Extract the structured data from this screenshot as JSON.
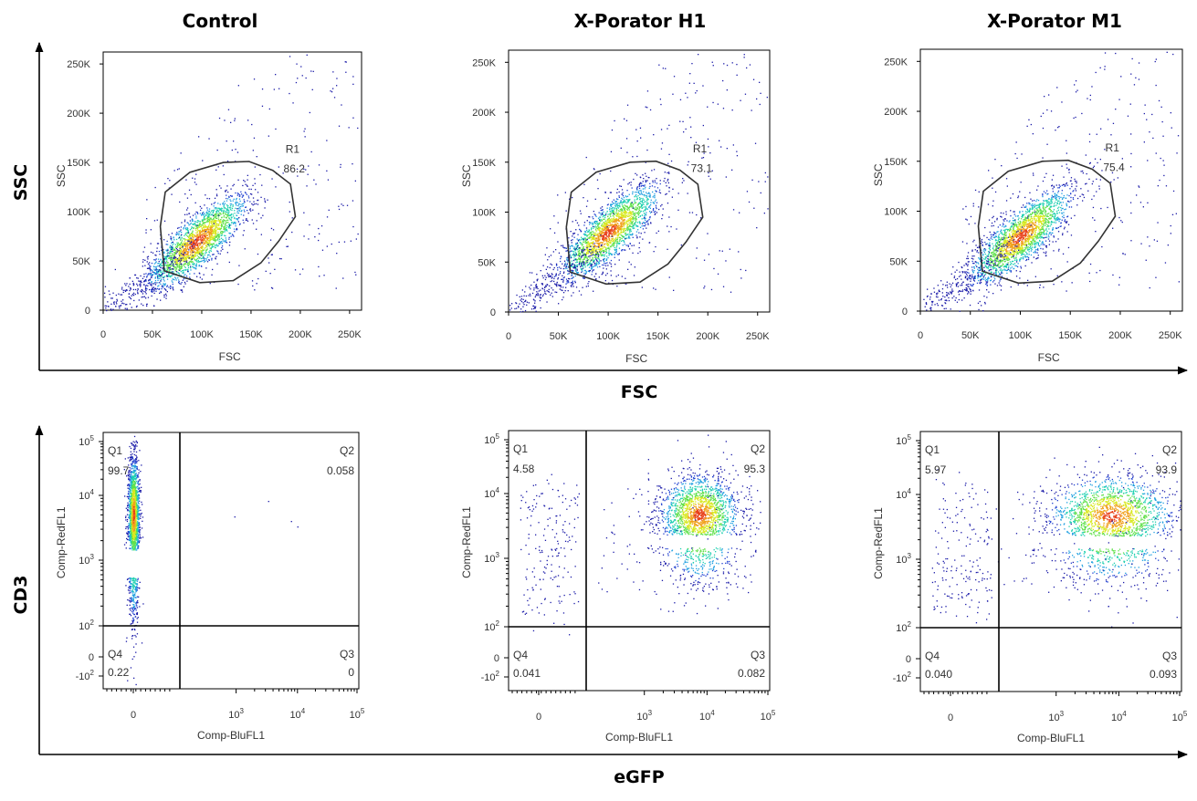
{
  "figure": {
    "column_titles": [
      "Control",
      "X-Porator H1",
      "X-Porator M1"
    ],
    "top_row": {
      "y_label": "SSC",
      "x_label": "FSC"
    },
    "bottom_row": {
      "y_label": "CD3",
      "x_label": "eGFP"
    }
  },
  "chart_data": [
    {
      "type": "scatter",
      "panel": "Control",
      "row": "scatter",
      "xlabel": "FSC",
      "ylabel": "SSC",
      "xlim": [
        0,
        262144
      ],
      "ylim": [
        0,
        262144
      ],
      "x_ticks": [
        "0",
        "50K",
        "100K",
        "150K",
        "200K",
        "250K"
      ],
      "y_ticks": [
        "0",
        "50K",
        "100K",
        "150K",
        "200K",
        "250K"
      ],
      "gate": {
        "name": "R1",
        "percent": "86.2"
      },
      "center": [
        95000,
        70000
      ],
      "ranges": [
        [
          0,
          262144
        ],
        [
          0,
          262144
        ]
      ]
    },
    {
      "type": "scatter",
      "panel": "X-Porator H1",
      "row": "scatter",
      "xlabel": "FSC",
      "ylabel": "SSC",
      "xlim": [
        0,
        262144
      ],
      "ylim": [
        0,
        262144
      ],
      "x_ticks": [
        "0",
        "50K",
        "100K",
        "150K",
        "200K",
        "250K"
      ],
      "y_ticks": [
        "0",
        "50K",
        "100K",
        "150K",
        "200K",
        "250K"
      ],
      "gate": {
        "name": "R1",
        "percent": "73.1"
      },
      "center": [
        100000,
        80000
      ],
      "ranges": [
        [
          0,
          262144
        ],
        [
          0,
          262144
        ]
      ]
    },
    {
      "type": "scatter",
      "panel": "X-Porator M1",
      "row": "scatter",
      "xlabel": "FSC",
      "ylabel": "SSC",
      "xlim": [
        0,
        262144
      ],
      "ylim": [
        0,
        262144
      ],
      "x_ticks": [
        "0",
        "50K",
        "100K",
        "150K",
        "200K",
        "250K"
      ],
      "y_ticks": [
        "0",
        "50K",
        "100K",
        "150K",
        "200K",
        "250K"
      ],
      "gate": {
        "name": "R1",
        "percent": "75.4"
      },
      "center": [
        100000,
        75000
      ],
      "ranges": [
        [
          0,
          262144
        ],
        [
          0,
          262144
        ]
      ]
    },
    {
      "type": "scatter",
      "panel": "Control",
      "row": "quadrant",
      "xlabel": "Comp-BluFL1",
      "ylabel": "Comp-RedFL1",
      "x_ticks": [
        "0",
        "10^3",
        "10^4",
        "10^5"
      ],
      "y_ticks": [
        "-10^2",
        "0",
        "10^2",
        "10^3",
        "10^4",
        "10^5"
      ],
      "quadrants": [
        {
          "name": "Q1",
          "percent": "99.7"
        },
        {
          "name": "Q2",
          "percent": "0.058"
        },
        {
          "name": "Q3",
          "percent": "0"
        },
        {
          "name": "Q4",
          "percent": "0.22"
        }
      ]
    },
    {
      "type": "scatter",
      "panel": "X-Porator H1",
      "row": "quadrant",
      "xlabel": "Comp-BluFL1",
      "ylabel": "Comp-RedFL1",
      "x_ticks": [
        "0",
        "10^3",
        "10^4",
        "10^5"
      ],
      "y_ticks": [
        "-10^2",
        "0",
        "10^2",
        "10^3",
        "10^4",
        "10^5"
      ],
      "quadrants": [
        {
          "name": "Q1",
          "percent": "4.58"
        },
        {
          "name": "Q2",
          "percent": "95.3"
        },
        {
          "name": "Q3",
          "percent": "0.082"
        },
        {
          "name": "Q4",
          "percent": "0.041"
        }
      ]
    },
    {
      "type": "scatter",
      "panel": "X-Porator M1",
      "row": "quadrant",
      "xlabel": "Comp-BluFL1",
      "ylabel": "Comp-RedFL1",
      "x_ticks": [
        "0",
        "10^3",
        "10^4",
        "10^5"
      ],
      "y_ticks": [
        "-10^2",
        "0",
        "10^2",
        "10^3",
        "10^4",
        "10^5"
      ],
      "quadrants": [
        {
          "name": "Q1",
          "percent": "5.97"
        },
        {
          "name": "Q2",
          "percent": "93.9"
        },
        {
          "name": "Q3",
          "percent": "0.093"
        },
        {
          "name": "Q4",
          "percent": "0.040"
        }
      ]
    }
  ]
}
